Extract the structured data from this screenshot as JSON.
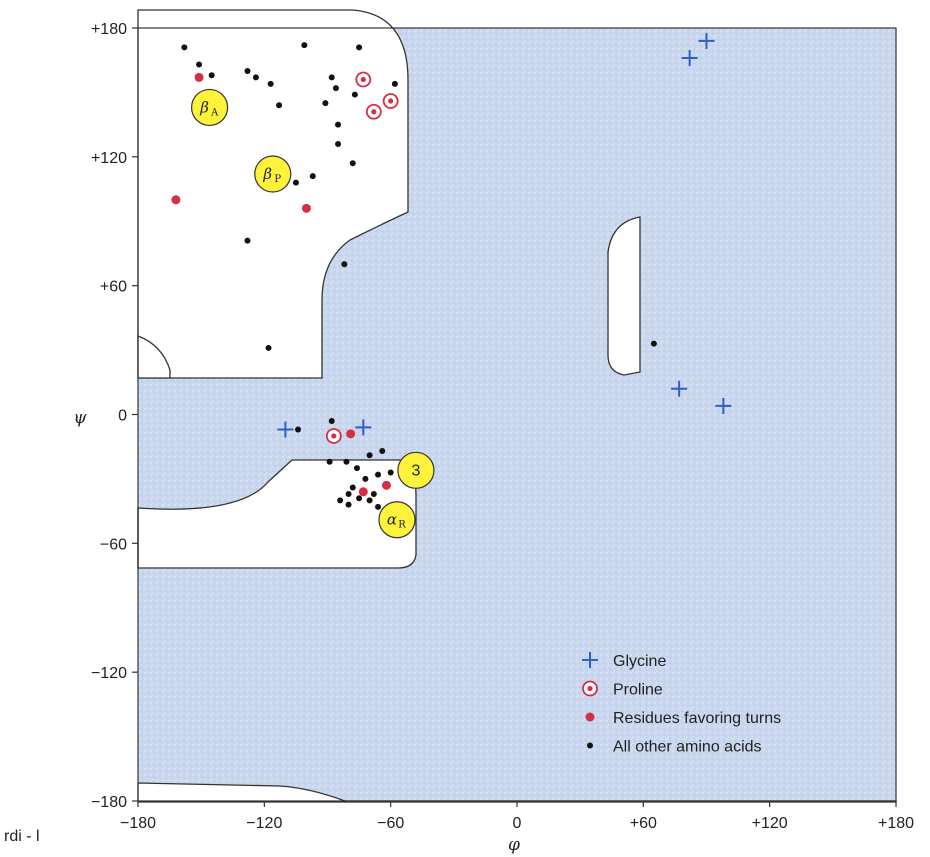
{
  "chart_data": {
    "type": "scatter",
    "title": "",
    "xlabel": "φ",
    "ylabel": "ψ",
    "xlim": [
      -180,
      180
    ],
    "ylim": [
      -180,
      180
    ],
    "xticks": [
      {
        "value": -180,
        "label": "−180"
      },
      {
        "value": -120,
        "label": "−120"
      },
      {
        "value": -60,
        "label": "−60"
      },
      {
        "value": 0,
        "label": "0"
      },
      {
        "value": 60,
        "label": "+60"
      },
      {
        "value": 120,
        "label": "+120"
      },
      {
        "value": 180,
        "label": "+180"
      }
    ],
    "yticks": [
      {
        "value": 180,
        "label": "+180"
      },
      {
        "value": 120,
        "label": "+120"
      },
      {
        "value": 60,
        "label": "+60"
      },
      {
        "value": 0,
        "label": "0"
      },
      {
        "value": -60,
        "label": "−60"
      },
      {
        "value": -120,
        "label": "−120"
      },
      {
        "value": -180,
        "label": "−180"
      }
    ],
    "disallowed_fill": "#c9d8ee",
    "allowed_fill": "#ffffff",
    "grid": false,
    "legend_position": "bottom-right",
    "region_labels": [
      {
        "text": "β",
        "sub": "A",
        "x": -146,
        "y": 143
      },
      {
        "text": "β",
        "sub": "P",
        "x": -116,
        "y": 112
      },
      {
        "text": "α",
        "sub": "R",
        "x": -57,
        "y": -49
      },
      {
        "text": "3",
        "sub": "",
        "x": -48,
        "y": -26
      }
    ],
    "series": [
      {
        "name": "Glycine",
        "marker": "plus",
        "color": "#2f5fc4",
        "points": [
          [
            82,
            166
          ],
          [
            90,
            174
          ],
          [
            77,
            12
          ],
          [
            98,
            4
          ],
          [
            -110,
            -7
          ],
          [
            -73,
            -6
          ]
        ]
      },
      {
        "name": "Proline",
        "marker": "ring",
        "color": "#d62f45",
        "points": [
          [
            -73,
            156
          ],
          [
            -68,
            141
          ],
          [
            -60,
            146
          ],
          [
            -87,
            -10
          ]
        ]
      },
      {
        "name": "Residues favoring turns",
        "marker": "dot",
        "color": "#d62f45",
        "points": [
          [
            -151,
            157
          ],
          [
            -162,
            100
          ],
          [
            -100,
            96
          ],
          [
            -79,
            -9
          ],
          [
            -73,
            -36
          ],
          [
            -62,
            -33
          ]
        ]
      },
      {
        "name": "All other amino acids",
        "marker": "dot",
        "color": "#111111",
        "points": [
          [
            -158,
            171
          ],
          [
            -151,
            163
          ],
          [
            -145,
            158
          ],
          [
            -128,
            160
          ],
          [
            -124,
            157
          ],
          [
            -117,
            154
          ],
          [
            -113,
            144
          ],
          [
            -101,
            172
          ],
          [
            -91,
            145
          ],
          [
            -88,
            157
          ],
          [
            -86,
            152
          ],
          [
            -85,
            135
          ],
          [
            -85,
            126
          ],
          [
            -77,
            149
          ],
          [
            -75,
            171
          ],
          [
            -58,
            154
          ],
          [
            -78,
            117
          ],
          [
            -97,
            111
          ],
          [
            -105,
            108
          ],
          [
            -128,
            81
          ],
          [
            -82,
            70
          ],
          [
            -118,
            31
          ],
          [
            -104,
            -7
          ],
          [
            -88,
            -3
          ],
          [
            -89,
            -22
          ],
          [
            -81,
            -22
          ],
          [
            -76,
            -25
          ],
          [
            -70,
            -19
          ],
          [
            -64,
            -17
          ],
          [
            -60,
            -27
          ],
          [
            -78,
            -34
          ],
          [
            -72,
            -30
          ],
          [
            -66,
            -28
          ],
          [
            -80,
            -37
          ],
          [
            -84,
            -40
          ],
          [
            -75,
            -39
          ],
          [
            -68,
            -37
          ],
          [
            -80,
            -42
          ],
          [
            -70,
            -40
          ],
          [
            -66,
            -43
          ],
          [
            65,
            33
          ]
        ]
      }
    ]
  },
  "footer": {
    "text": "rdi - l"
  }
}
